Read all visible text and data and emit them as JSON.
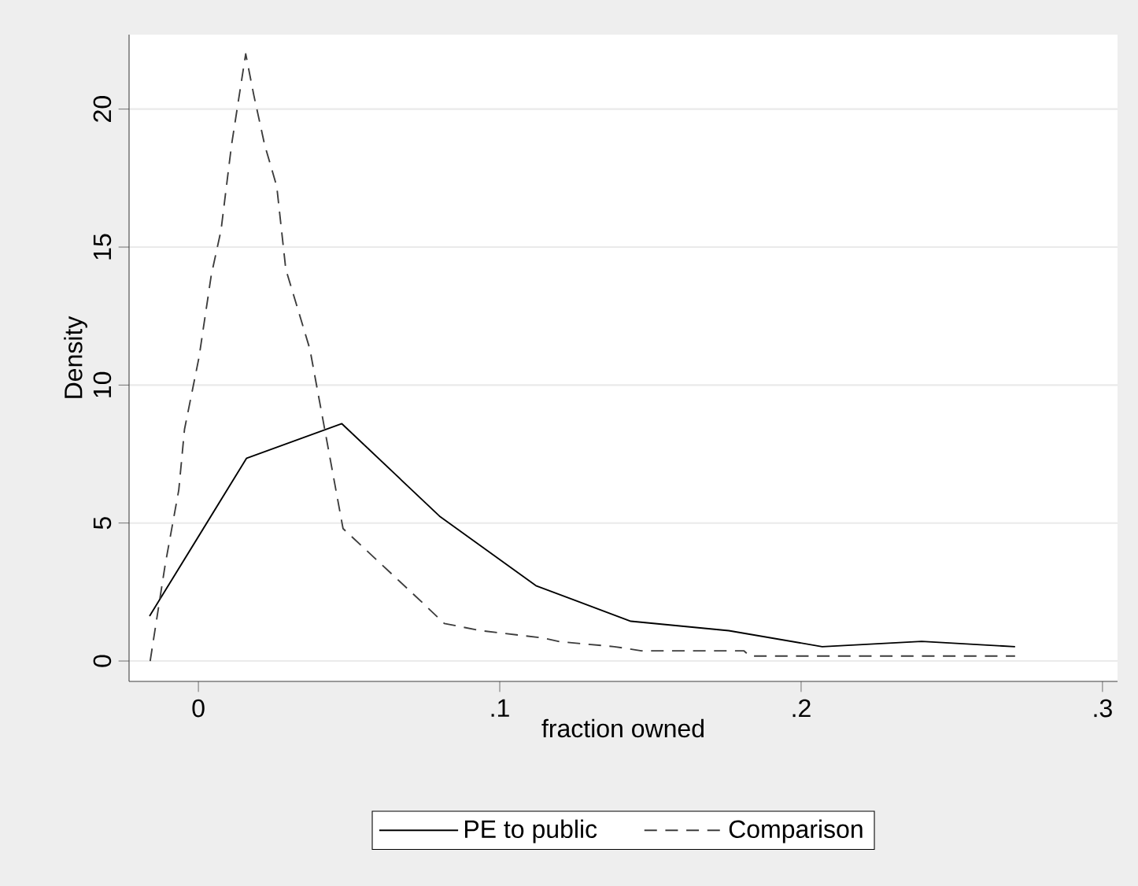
{
  "chart_data": {
    "type": "line",
    "xlabel": "fraction owned",
    "ylabel": "Density",
    "xlim": [
      -0.023,
      0.305
    ],
    "ylim": [
      -0.74,
      22.7
    ],
    "xticks": [
      0,
      {
        "value": 0.1,
        "label": ".1"
      },
      {
        "value": 0.2,
        "label": ".2"
      },
      {
        "value": 0.3,
        "label": ".3"
      }
    ],
    "yticks": [
      0,
      5,
      10,
      15,
      20
    ],
    "grid": "y",
    "legend": "bottom",
    "marker": "none",
    "series": [
      {
        "name": "PE to public",
        "color": "#000000",
        "line_style": "solid",
        "x": [
          -0.0162,
          0.016,
          0.0476,
          0.08,
          0.112,
          0.1435,
          0.176,
          0.207,
          0.24,
          0.271
        ],
        "values": [
          1.63,
          7.35,
          8.6,
          5.25,
          2.73,
          1.44,
          1.1,
          0.52,
          0.71,
          0.52
        ]
      },
      {
        "name": "Comparison",
        "color": "#3c3c3c",
        "line_style": "dashed",
        "x": [
          -0.016,
          -0.011,
          -0.0065,
          -0.0046,
          0.0002,
          0.0043,
          0.0075,
          0.011,
          0.0157,
          0.0184,
          0.022,
          0.026,
          0.029,
          0.037,
          0.048,
          0.074,
          0.0816,
          0.0937,
          0.114,
          0.12,
          0.138,
          0.147,
          0.181,
          0.183,
          0.271
        ],
        "values": [
          0,
          3.5,
          6.2,
          8.4,
          11,
          14,
          15.6,
          18.7,
          22,
          20.5,
          18.7,
          17.2,
          14.2,
          11.3,
          4.8,
          2.15,
          1.36,
          1.1,
          0.84,
          0.7,
          0.52,
          0.37,
          0.37,
          0.18,
          0.18
        ]
      }
    ]
  }
}
